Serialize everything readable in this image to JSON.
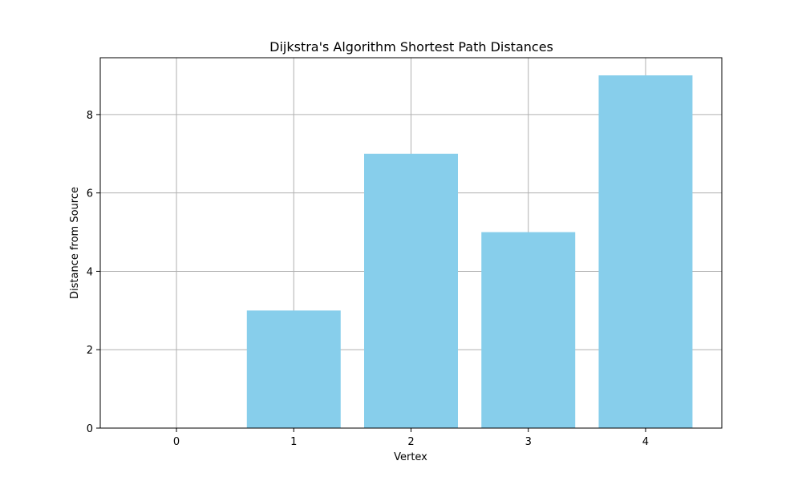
{
  "chart_data": {
    "type": "bar",
    "title": "Dijkstra's Algorithm Shortest Path Distances",
    "xlabel": "Vertex",
    "ylabel": "Distance from Source",
    "categories": [
      "0",
      "1",
      "2",
      "3",
      "4"
    ],
    "values": [
      0,
      3,
      7,
      5,
      9
    ],
    "yticks": [
      0,
      2,
      4,
      6,
      8
    ],
    "ytick_labels": [
      "0",
      "2",
      "4",
      "6",
      "8"
    ],
    "ylim": [
      0,
      9.45
    ],
    "xlim": [
      -0.65,
      4.65
    ],
    "bar_width": 0.8,
    "grid": true,
    "bar_color": "#87ceeb",
    "grid_color": "#b0b0b0"
  }
}
